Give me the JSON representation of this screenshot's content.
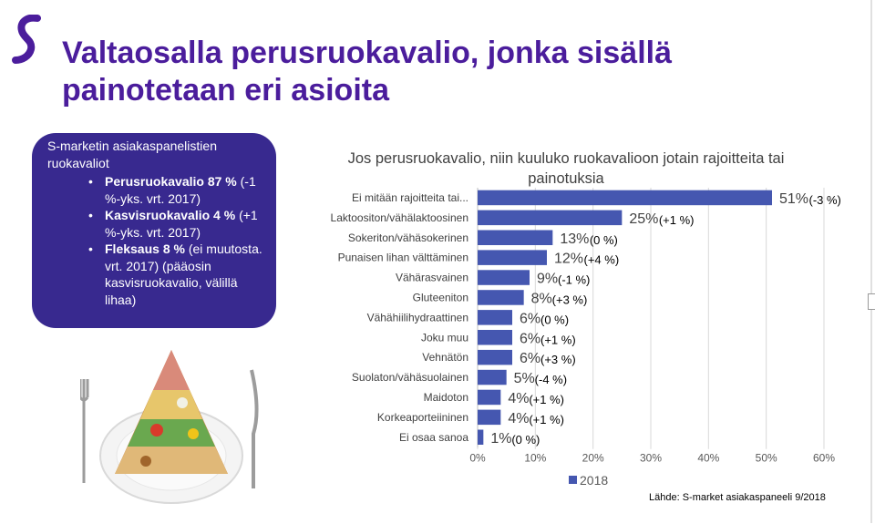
{
  "title_lines": [
    "Valtaosalla perusruokavalio, jonka sisällä",
    "painotetaan eri asioita"
  ],
  "colors": {
    "brand": "#4b1d9c",
    "box": "#38298f",
    "bar": "#4557b0"
  },
  "infobox": {
    "heading": "S-marketin asiakaspanelistien ruokavaliot",
    "items": [
      {
        "bold": "Perusruokavalio  87 %",
        "text": " (-1 %-yks. vrt. 2017)"
      },
      {
        "bold": "Kasvisruokavalio 4 %",
        "text": " (+1 %-yks. vrt. 2017)"
      },
      {
        "bold": "Fleksaus  8 %",
        "text": " (ei muutosta. vrt. 2017) (pääosin kasvisruokavalio, välillä lihaa)"
      }
    ]
  },
  "illustration": {
    "icon": "food-pyramid-plate-icon"
  },
  "source": "Lähde: S-market asiakaspaneeli 9/2018",
  "chart_data": {
    "type": "bar",
    "orientation": "horizontal",
    "title": "Jos perusruokavalio, niin kuuluko ruokavalioon jotain rajoitteita tai painotuksia",
    "categories": [
      "Ei mitään rajoitteita tai...",
      "Laktoositon/vähälaktoosinen",
      "Sokeriton/vähäsokerinen",
      "Punaisen lihan välttäminen",
      "Vähärasvainen",
      "Gluteeniton",
      "Vähähiilihydraattinen",
      "Joku muu",
      "Vehnätön",
      "Suolaton/vähäsuolainen",
      "Maidoton",
      "Korkeaporteiininen",
      "Ei osaa sanoa"
    ],
    "series": [
      {
        "name": "2018",
        "values": [
          51,
          25,
          13,
          12,
          9,
          8,
          6,
          6,
          6,
          5,
          4,
          4,
          1
        ]
      }
    ],
    "data_labels": [
      "51%",
      "25%",
      "13%",
      "12%",
      "9%",
      "8%",
      "6%",
      "6%",
      "6%",
      "5%",
      "4%",
      "4%",
      "1%"
    ],
    "changes": [
      "(-3 %)",
      "(+1 %)",
      "(0 %)",
      "(+4 %)",
      "(-1 %)",
      "(+3 %)",
      "(0 %)",
      "(+1 %)",
      "(+3 %)",
      "(-4 %)",
      "(+1 %)",
      "(+1 %)",
      "(0 %)"
    ],
    "xlim": [
      0,
      60
    ],
    "xticks": [
      0,
      10,
      20,
      30,
      40,
      50,
      60
    ],
    "xtick_labels": [
      "0%",
      "10%",
      "20%",
      "30%",
      "40%",
      "50%",
      "60%"
    ],
    "grid": true,
    "legend": "bottom"
  }
}
